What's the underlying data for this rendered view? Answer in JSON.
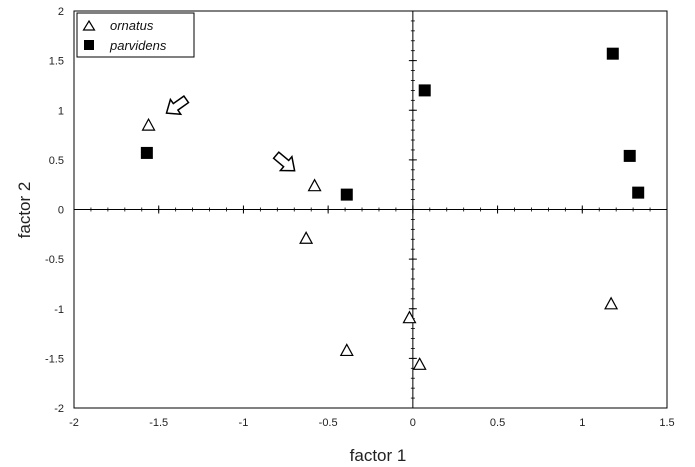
{
  "chart_data": {
    "type": "scatter",
    "title": "",
    "xlabel": "factor 1",
    "ylabel": "factor 2",
    "xlim": [
      -2,
      1.5
    ],
    "ylim": [
      -2,
      2
    ],
    "xticks": [
      -2,
      -1.5,
      -1,
      -0.5,
      0,
      0.5,
      1,
      1.5
    ],
    "yticks": [
      2,
      1.5,
      1,
      0.5,
      0,
      -0.5,
      -1,
      -1.5,
      -2
    ],
    "xtick_labels": [
      "-2",
      "-1.5",
      "-1",
      "-0.5",
      "0",
      "0.5",
      "1",
      "1.5"
    ],
    "ytick_labels": [
      "2",
      "1.5",
      "1",
      "0.5",
      "0",
      "-0.5",
      "-1",
      "-1.5",
      "-2"
    ],
    "grid": false,
    "axes_through_origin": true,
    "legend_position": "top-left",
    "series": [
      {
        "name": "ornatus",
        "marker": "open-triangle",
        "color": "#000000",
        "points": [
          {
            "x": -1.56,
            "y": 0.85
          },
          {
            "x": -0.58,
            "y": 0.24
          },
          {
            "x": -0.63,
            "y": -0.29
          },
          {
            "x": -0.39,
            "y": -1.42
          },
          {
            "x": -0.02,
            "y": -1.09
          },
          {
            "x": 0.04,
            "y": -1.56
          },
          {
            "x": 1.17,
            "y": -0.95
          }
        ]
      },
      {
        "name": "parvidens",
        "marker": "filled-square",
        "color": "#000000",
        "points": [
          {
            "x": -1.57,
            "y": 0.57
          },
          {
            "x": -0.39,
            "y": 0.15
          },
          {
            "x": 0.07,
            "y": 1.2
          },
          {
            "x": 1.18,
            "y": 1.57
          },
          {
            "x": 1.28,
            "y": 0.54
          },
          {
            "x": 1.33,
            "y": 0.17
          }
        ]
      }
    ],
    "annotations": [
      {
        "type": "arrow",
        "points_to": {
          "x": -1.56,
          "y": 0.85
        }
      },
      {
        "type": "arrow",
        "points_to": {
          "x": -0.58,
          "y": 0.24
        }
      }
    ]
  }
}
